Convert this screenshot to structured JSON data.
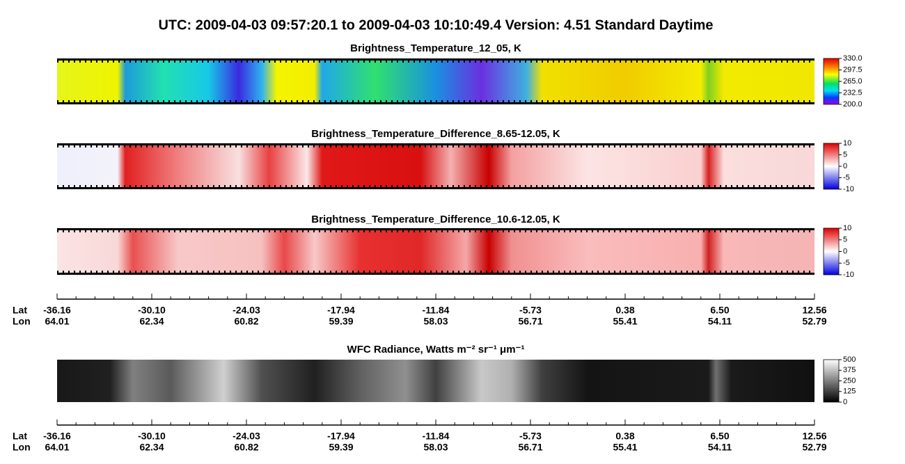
{
  "title": "UTC:  2009-04-03   09:57:20.1  to  2009-04-03   10:10:49.4   Version: 4.51  Standard Daytime",
  "panels": [
    {
      "title": "Brightness_Temperature_12_05, K",
      "cbar_lim": [
        200,
        330
      ],
      "cbar_ticks": [
        {
          "value": 330,
          "label": "330.0"
        },
        {
          "value": 297.5,
          "label": "297.5"
        },
        {
          "value": 265,
          "label": "265.0"
        },
        {
          "value": 232.5,
          "label": "232.5"
        },
        {
          "value": 200,
          "label": "200.0"
        }
      ]
    },
    {
      "title": "Brightness_Temperature_Difference_8.65-12.05, K",
      "cbar_lim": [
        -10,
        10
      ],
      "cbar_ticks": [
        10,
        5,
        0,
        -5,
        -10
      ]
    },
    {
      "title": "Brightness_Temperature_Difference_10.6-12.05, K",
      "cbar_lim": [
        -10,
        10
      ],
      "cbar_ticks": [
        10,
        5,
        0,
        -5,
        -10
      ]
    },
    {
      "title": "WFC Radiance, Watts m⁻² sr⁻¹ μm⁻¹",
      "cbar_lim": [
        0,
        500
      ],
      "cbar_ticks": [
        500,
        375,
        250,
        125,
        0
      ]
    }
  ],
  "axes": [
    {
      "lat_name": "Lat",
      "lon_name": "Lon",
      "lat": [
        "-36.16",
        "-30.10",
        "-24.03",
        "-17.94",
        "-11.84",
        "-5.73",
        "0.38",
        "6.50",
        "12.56"
      ],
      "lon": [
        "64.01",
        "62.34",
        "60.82",
        "59.39",
        "58.03",
        "56.71",
        "55.41",
        "54.11",
        "52.79"
      ]
    },
    {
      "lat_name": "Lat",
      "lon_name": "Lon",
      "lat": [
        "-36.16",
        "-30.10",
        "-24.03",
        "-17.94",
        "-11.84",
        "-5.73",
        "0.38",
        "6.50",
        "12.56"
      ],
      "lon": [
        "64.01",
        "62.34",
        "60.82",
        "59.39",
        "58.03",
        "56.71",
        "55.41",
        "54.11",
        "52.79"
      ]
    }
  ]
}
